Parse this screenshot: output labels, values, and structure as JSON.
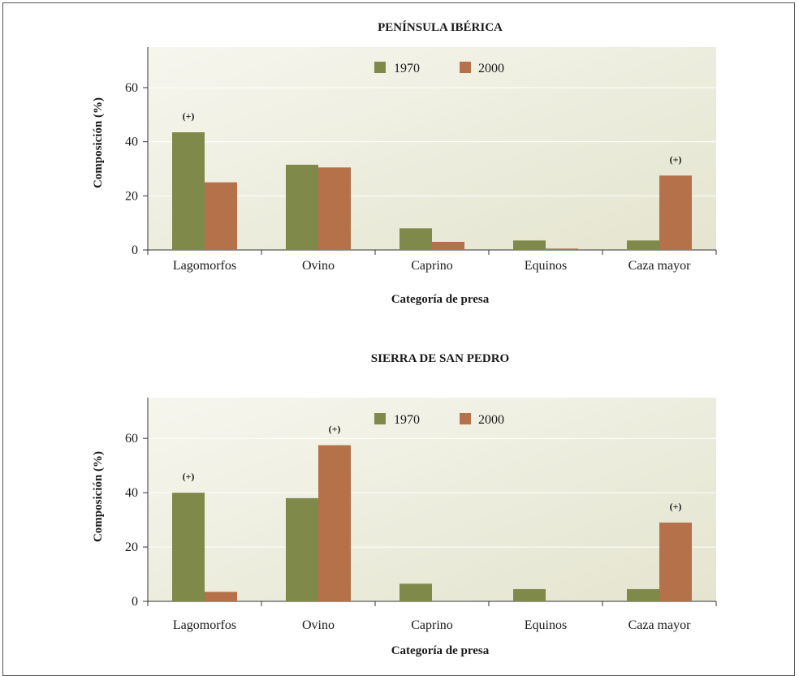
{
  "colors": {
    "series_1970": "#7f8a4a",
    "series_2000": "#b5714a",
    "plot_bg_start": "#f4f4ea",
    "plot_bg_end": "#e6e6d2",
    "grid": "#ffffff",
    "axis": "#333333"
  },
  "chart_data": [
    {
      "type": "bar",
      "title": "PENÍNSULA IBÉRICA",
      "xlabel": "Categoría de presa",
      "ylabel": "Composición (%)",
      "ylim": [
        0,
        75
      ],
      "yticks": [
        0,
        20,
        40,
        60
      ],
      "grid": true,
      "legend_position": "top-center",
      "categories": [
        "Lagomorfos",
        "Ovino",
        "Caprino",
        "Equinos",
        "Caza mayor"
      ],
      "series": [
        {
          "name": "1970",
          "values": [
            43.5,
            31.5,
            8.0,
            3.5,
            3.5
          ]
        },
        {
          "name": "2000",
          "values": [
            25.0,
            30.5,
            3.0,
            0.5,
            27.5
          ]
        }
      ],
      "annotations": [
        {
          "category": "Lagomorfos",
          "text": "(+)"
        },
        {
          "category": "Caza mayor",
          "text": "(+)"
        }
      ]
    },
    {
      "type": "bar",
      "title": "SIERRA DE SAN PEDRO",
      "xlabel": "Categoría de presa",
      "ylabel": "Composición (%)",
      "ylim": [
        0,
        75
      ],
      "yticks": [
        0,
        20,
        40,
        60
      ],
      "grid": true,
      "legend_position": "top-center",
      "categories": [
        "Lagomorfos",
        "Ovino",
        "Caprino",
        "Equinos",
        "Caza mayor"
      ],
      "series": [
        {
          "name": "1970",
          "values": [
            40.0,
            38.0,
            6.5,
            4.5,
            4.5
          ]
        },
        {
          "name": "2000",
          "values": [
            3.5,
            57.5,
            0,
            0,
            29.0
          ]
        }
      ],
      "annotations": [
        {
          "category": "Lagomorfos",
          "text": "(+)"
        },
        {
          "category": "Ovino",
          "text": "(+)"
        },
        {
          "category": "Caza mayor",
          "text": "(+)"
        }
      ]
    }
  ]
}
